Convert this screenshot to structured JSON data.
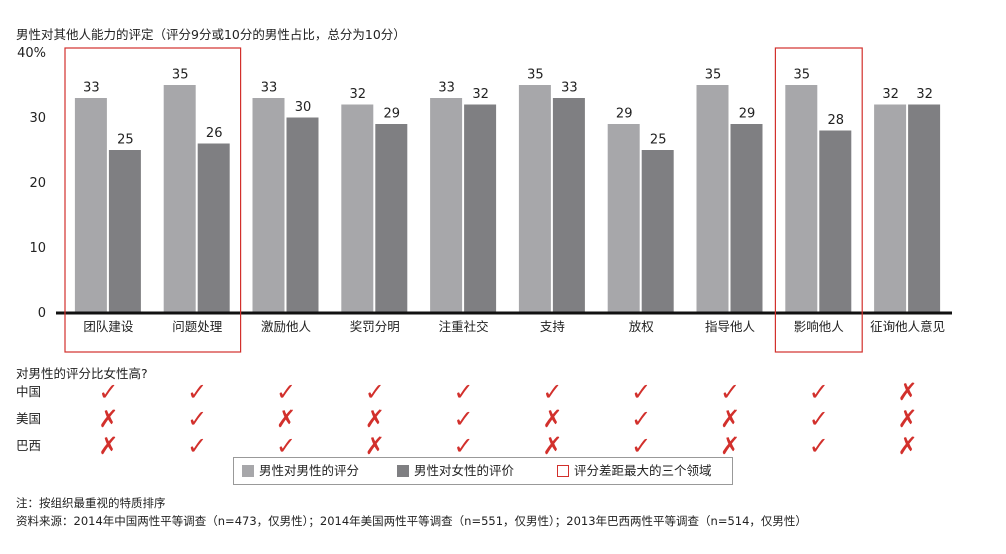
{
  "title": "男性对其他人能力的评定（评分9分或10分的男性占比，总分为10分）",
  "chart_data": {
    "type": "bar",
    "categories": [
      "团队建设",
      "问题处理",
      "激励他人",
      "奖罚分明",
      "注重社交",
      "支持",
      "放权",
      "指导他人",
      "影响他人",
      "征询他人意见"
    ],
    "series": [
      {
        "name": "男性对男性的评分",
        "values": [
          33,
          35,
          33,
          32,
          33,
          35,
          29,
          35,
          35,
          32
        ],
        "color": "#a7a7aa"
      },
      {
        "name": "男性对女性的评价",
        "values": [
          25,
          26,
          30,
          29,
          32,
          33,
          25,
          29,
          28,
          32
        ],
        "color": "#7f7f82"
      }
    ],
    "ylim": [
      0,
      40
    ],
    "yticks": [
      "0",
      "10",
      "20",
      "30",
      "40%"
    ],
    "highlight_groups": [
      [
        0,
        1
      ],
      [
        8
      ]
    ],
    "highlight_color": "#d2302c"
  },
  "comparison": {
    "question": "对男性的评分比女性高?",
    "rows": [
      {
        "country": "中国",
        "marks": [
          true,
          true,
          true,
          true,
          true,
          true,
          true,
          true,
          true,
          false
        ]
      },
      {
        "country": "美国",
        "marks": [
          false,
          true,
          false,
          false,
          true,
          false,
          true,
          false,
          true,
          false
        ]
      },
      {
        "country": "巴西",
        "marks": [
          false,
          true,
          true,
          false,
          true,
          false,
          true,
          false,
          true,
          false
        ]
      }
    ],
    "check_symbol": "✓",
    "cross_symbol": "✗",
    "mark_color": "#d2302c"
  },
  "legend": {
    "male_to_male": "男性对男性的评分",
    "male_to_female": "男性对女性的评价",
    "gap": "评分差距最大的三个领域"
  },
  "notes": {
    "note": "注：按组织最重视的特质排序",
    "source": "资料来源：2014年中国两性平等调查（n=473，仅男性）；2014年美国两性平等调查（n=551，仅男性）；2013年巴西两性平等调查（n=514，仅男性）"
  }
}
